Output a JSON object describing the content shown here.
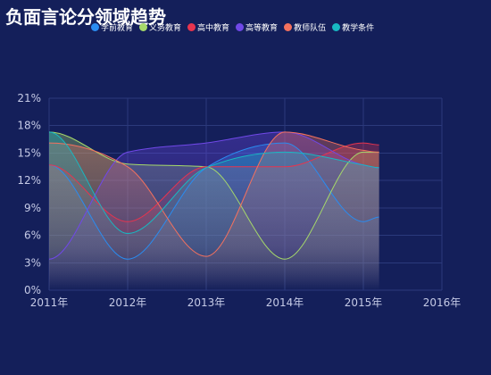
{
  "chart_data": {
    "type": "area",
    "title": "负面言论分领域趋势",
    "xlabel": "",
    "ylabel": "",
    "x_tick_values": [
      2011,
      2012,
      2013,
      2014,
      2015,
      2016
    ],
    "x_tick_labels": [
      "2011年",
      "2012年",
      "2013年",
      "2014年",
      "2015年",
      "2016年"
    ],
    "xlim": [
      2011,
      2016
    ],
    "y_tick_values": [
      0,
      3,
      6,
      9,
      12,
      15,
      18,
      21
    ],
    "y_tick_labels": [
      "0%",
      "3%",
      "6%",
      "9%",
      "12%",
      "15%",
      "18%",
      "21%"
    ],
    "ylim": [
      0,
      21
    ],
    "grid": true,
    "smooth": true,
    "legend_position": "top",
    "series": [
      {
        "name": "学前教育",
        "color": "#2a8cf0",
        "x": [
          2011,
          2012,
          2013,
          2014,
          2015,
          2015.2
        ],
        "values": [
          13.7,
          3.4,
          13.4,
          16.1,
          7.5,
          8.0
        ]
      },
      {
        "name": "义务教育",
        "color": "#a6d96a",
        "x": [
          2011,
          2012,
          2013,
          2014,
          2015,
          2015.2
        ],
        "values": [
          17.3,
          13.8,
          13.5,
          3.4,
          15.1,
          15.1
        ]
      },
      {
        "name": "高中教育",
        "color": "#e8344e",
        "x": [
          2011,
          2012,
          2013,
          2014,
          2015,
          2015.2
        ],
        "values": [
          13.7,
          7.5,
          13.5,
          13.5,
          16.1,
          15.9
        ]
      },
      {
        "name": "高等教育",
        "color": "#7048e8",
        "x": [
          2011,
          2012,
          2013,
          2014,
          2015,
          2015.2
        ],
        "values": [
          3.4,
          15.1,
          16.1,
          17.3,
          13.7,
          13.4
        ]
      },
      {
        "name": "教师队伍",
        "color": "#f4715e",
        "x": [
          2011,
          2012,
          2013,
          2014,
          2015,
          2015.2
        ],
        "values": [
          16.1,
          13.5,
          3.7,
          17.3,
          15.3,
          15.1
        ]
      },
      {
        "name": "教学条件",
        "color": "#18b8c2",
        "x": [
          2011,
          2012,
          2013,
          2014,
          2015,
          2015.2
        ],
        "values": [
          17.3,
          6.2,
          13.4,
          15.1,
          13.7,
          13.4
        ]
      }
    ]
  }
}
